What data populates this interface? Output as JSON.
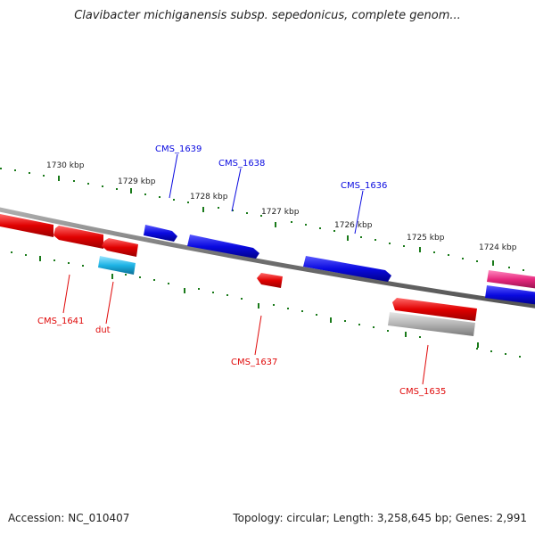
{
  "title": "Clavibacter michiganensis subsp. sepedonicus, complete genom...",
  "footer": {
    "accession": "Accession: NC_010407",
    "summary": "Topology: circular; Length: 3,258,645 bp; Genes: 2,991"
  },
  "colors": {
    "forward_gene": "#0a0ae0",
    "reverse_gene": "#e00a0a",
    "rna_gene": "#1eb4e6",
    "pseudo_gene": "#e6287d",
    "other_feature": "#b4b4b4",
    "backbone": "#808080",
    "ticks": "#1a7a1a"
  },
  "tick_labels": [
    "1730 kbp",
    "1729 kbp",
    "1728 kbp",
    "1727 kbp",
    "1726 kbp",
    "1725 kbp",
    "1724 kbp"
  ],
  "gene_labels": {
    "forward": [
      "CMS_1639",
      "CMS_1638",
      "CMS_1636"
    ],
    "reverse": [
      "CMS_1641",
      "dut",
      "CMS_1637",
      "CMS_1635"
    ]
  }
}
